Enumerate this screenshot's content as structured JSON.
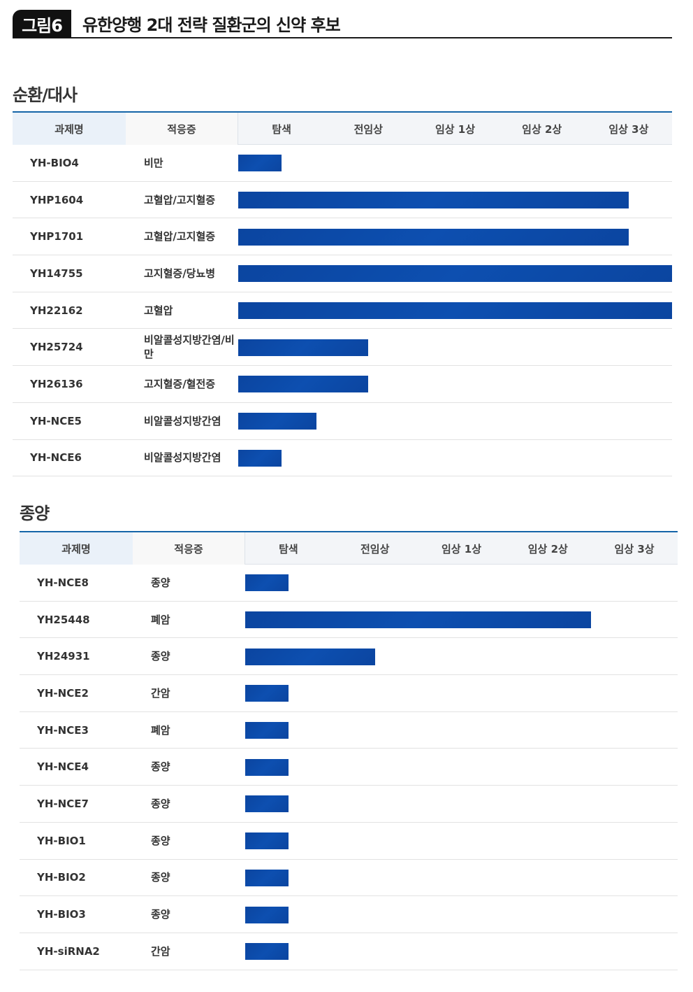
{
  "figure": {
    "badge": "그림6",
    "title": "유한양행 2대 전략 질환군의 신약 후보"
  },
  "colors": {
    "bar": "#0b45a0",
    "header_line": "#1565a8"
  },
  "columns": [
    "과제명",
    "적응증",
    "탐색",
    "전임상",
    "임상 1상",
    "임상 2상",
    "임상 3상"
  ],
  "sections": [
    {
      "title": "순환/대사",
      "rows": [
        {
          "name": "YH-BIO4",
          "indication": "비만"
        },
        {
          "name": "YHP1604",
          "indication": "고혈압/고지혈증"
        },
        {
          "name": "YHP1701",
          "indication": "고혈압/고지혈증"
        },
        {
          "name": "YH14755",
          "indication": "고지혈증/당뇨병"
        },
        {
          "name": "YH22162",
          "indication": "고혈압"
        },
        {
          "name": "YH25724",
          "indication": "비알콜성지방간염/비만"
        },
        {
          "name": "YH26136",
          "indication": "고지혈증/혈전증"
        },
        {
          "name": "YH-NCE5",
          "indication": "비알콜성지방간염"
        },
        {
          "name": "YH-NCE6",
          "indication": "비알콜성지방간염"
        }
      ]
    },
    {
      "title": "종양",
      "rows": [
        {
          "name": "YH-NCE8",
          "indication": "종양"
        },
        {
          "name": "YH25448",
          "indication": "폐암"
        },
        {
          "name": "YH24931",
          "indication": "종양"
        },
        {
          "name": "YH-NCE2",
          "indication": "간암"
        },
        {
          "name": "YH-NCE3",
          "indication": "폐암"
        },
        {
          "name": "YH-NCE4",
          "indication": "종양"
        },
        {
          "name": "YH-NCE7",
          "indication": "종양"
        },
        {
          "name": "YH-BIO1",
          "indication": "종양"
        },
        {
          "name": "YH-BIO2",
          "indication": "종양"
        },
        {
          "name": "YH-BIO3",
          "indication": "종양"
        },
        {
          "name": "YH-siRNA2",
          "indication": "간암"
        }
      ]
    }
  ],
  "chart_data": [
    {
      "type": "bar",
      "orientation": "horizontal",
      "title": "순환/대사",
      "categories": [
        "YH-BIO4",
        "YHP1604",
        "YHP1701",
        "YH14755",
        "YH22162",
        "YH25724",
        "YH26136",
        "YH-NCE5",
        "YH-NCE6"
      ],
      "stages": [
        "탐색",
        "전임상",
        "임상 1상",
        "임상 2상",
        "임상 3상"
      ],
      "values": [
        0.5,
        4.5,
        4.5,
        5,
        5,
        1.5,
        1.5,
        0.9,
        0.5
      ],
      "xlim": [
        0,
        5
      ]
    },
    {
      "type": "bar",
      "orientation": "horizontal",
      "title": "종양",
      "categories": [
        "YH-NCE8",
        "YH25448",
        "YH24931",
        "YH-NCE2",
        "YH-NCE3",
        "YH-NCE4",
        "YH-NCE7",
        "YH-BIO1",
        "YH-BIO2",
        "YH-BIO3",
        "YH-siRNA2"
      ],
      "stages": [
        "탐색",
        "전임상",
        "임상 1상",
        "임상 2상",
        "임상 3상"
      ],
      "values": [
        0.5,
        4,
        1.5,
        0.5,
        0.5,
        0.5,
        0.5,
        0.5,
        0.5,
        0.5,
        0.5
      ],
      "xlim": [
        0,
        5
      ]
    }
  ]
}
